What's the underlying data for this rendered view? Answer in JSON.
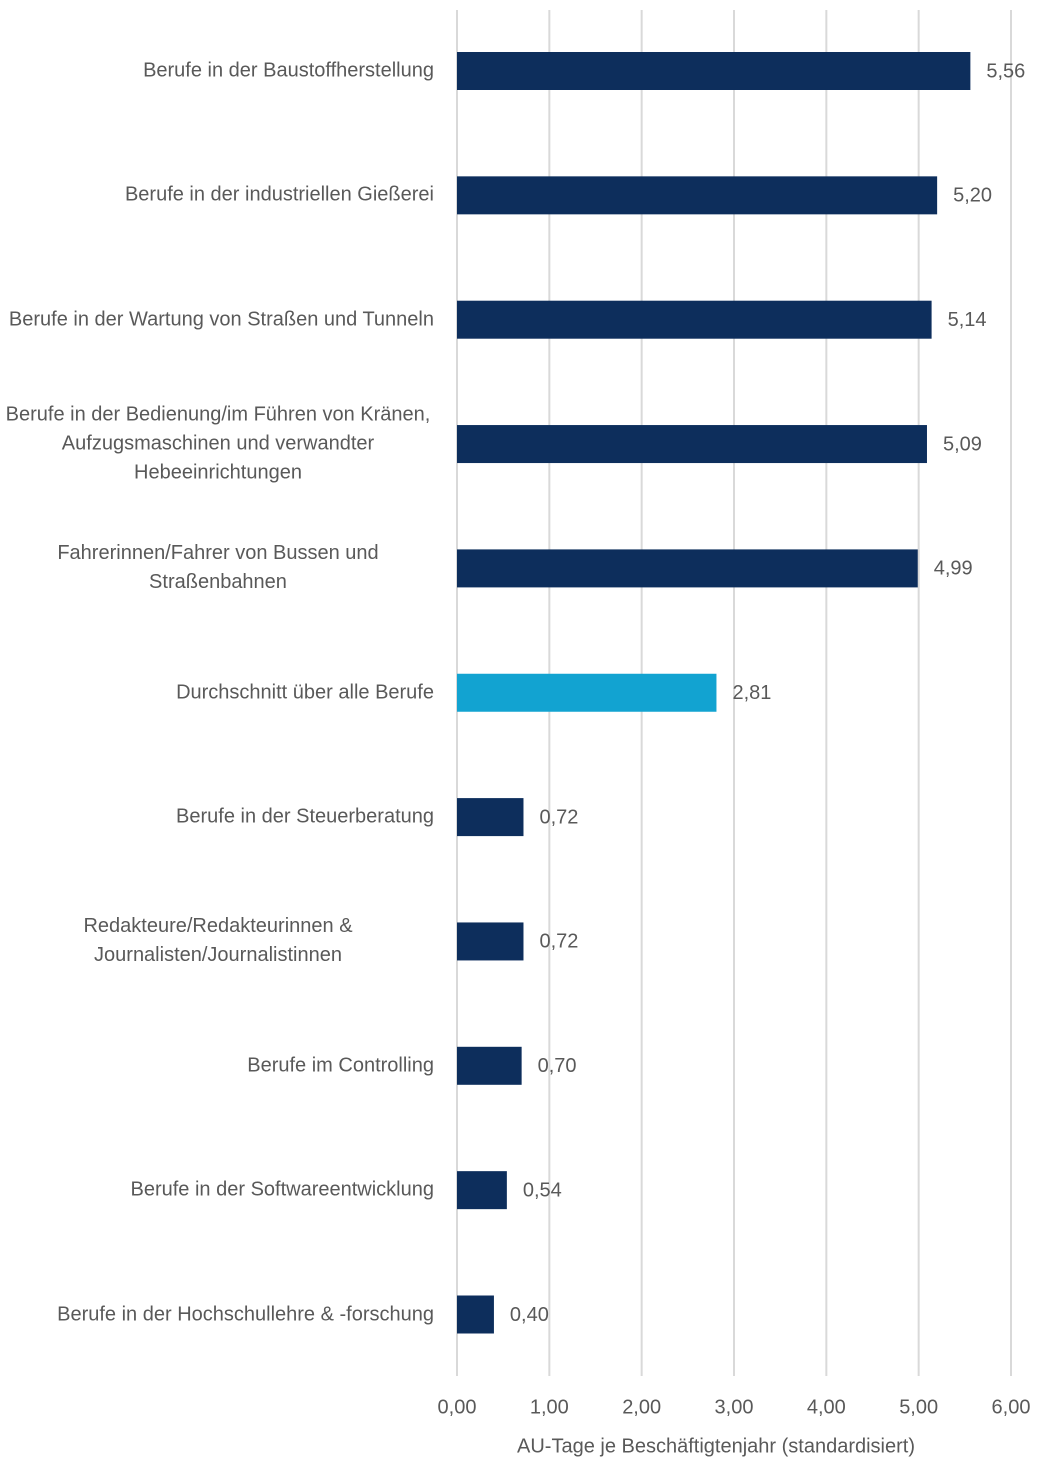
{
  "chart_data": {
    "type": "bar",
    "orientation": "horizontal",
    "x_label": "AU-Tage je Beschäftigtenjahr (standardisiert)",
    "categories": [
      "Berufe in der Baustoffherstellung",
      "Berufe in der industriellen Gießerei",
      "Berufe in der Wartung von Straßen und Tunneln",
      "Berufe in der Bedienung/im Führen von Kränen, Aufzugsmaschinen und verwandter Hebeeinrichtungen",
      "Fahrerinnen/Fahrer von Bussen und Straßenbahnen",
      "Durchschnitt über alle Berufe",
      "Berufe in der Steuerberatung",
      "Redakteure/Redakteurinnen & Journalisten/Journalistinnen",
      "Berufe im Controlling",
      "Berufe in der Softwareentwicklung",
      "Berufe in der Hochschullehre & -forschung"
    ],
    "values": [
      5.56,
      5.2,
      5.14,
      5.09,
      4.99,
      2.81,
      0.72,
      0.72,
      0.7,
      0.54,
      0.4
    ],
    "value_labels": [
      "5,56",
      "5,20",
      "5,14",
      "5,09",
      "4,99",
      "2,81",
      "0,72",
      "0,72",
      "0,70",
      "0,54",
      "0,40"
    ],
    "colors": [
      "#0d2e5c",
      "#0d2e5c",
      "#0d2e5c",
      "#0d2e5c",
      "#0d2e5c",
      "#12a3d1",
      "#0d2e5c",
      "#0d2e5c",
      "#0d2e5c",
      "#0d2e5c",
      "#0d2e5c"
    ],
    "xlim": [
      0,
      6
    ],
    "xticks": [
      {
        "value": 0,
        "label": "0,00"
      },
      {
        "value": 1,
        "label": "1,00"
      },
      {
        "value": 2,
        "label": "2,00"
      },
      {
        "value": 3,
        "label": "3,00"
      },
      {
        "value": 4,
        "label": "4,00"
      },
      {
        "value": 5,
        "label": "5,00"
      },
      {
        "value": 6,
        "label": "6,00"
      }
    ],
    "grid": true
  }
}
